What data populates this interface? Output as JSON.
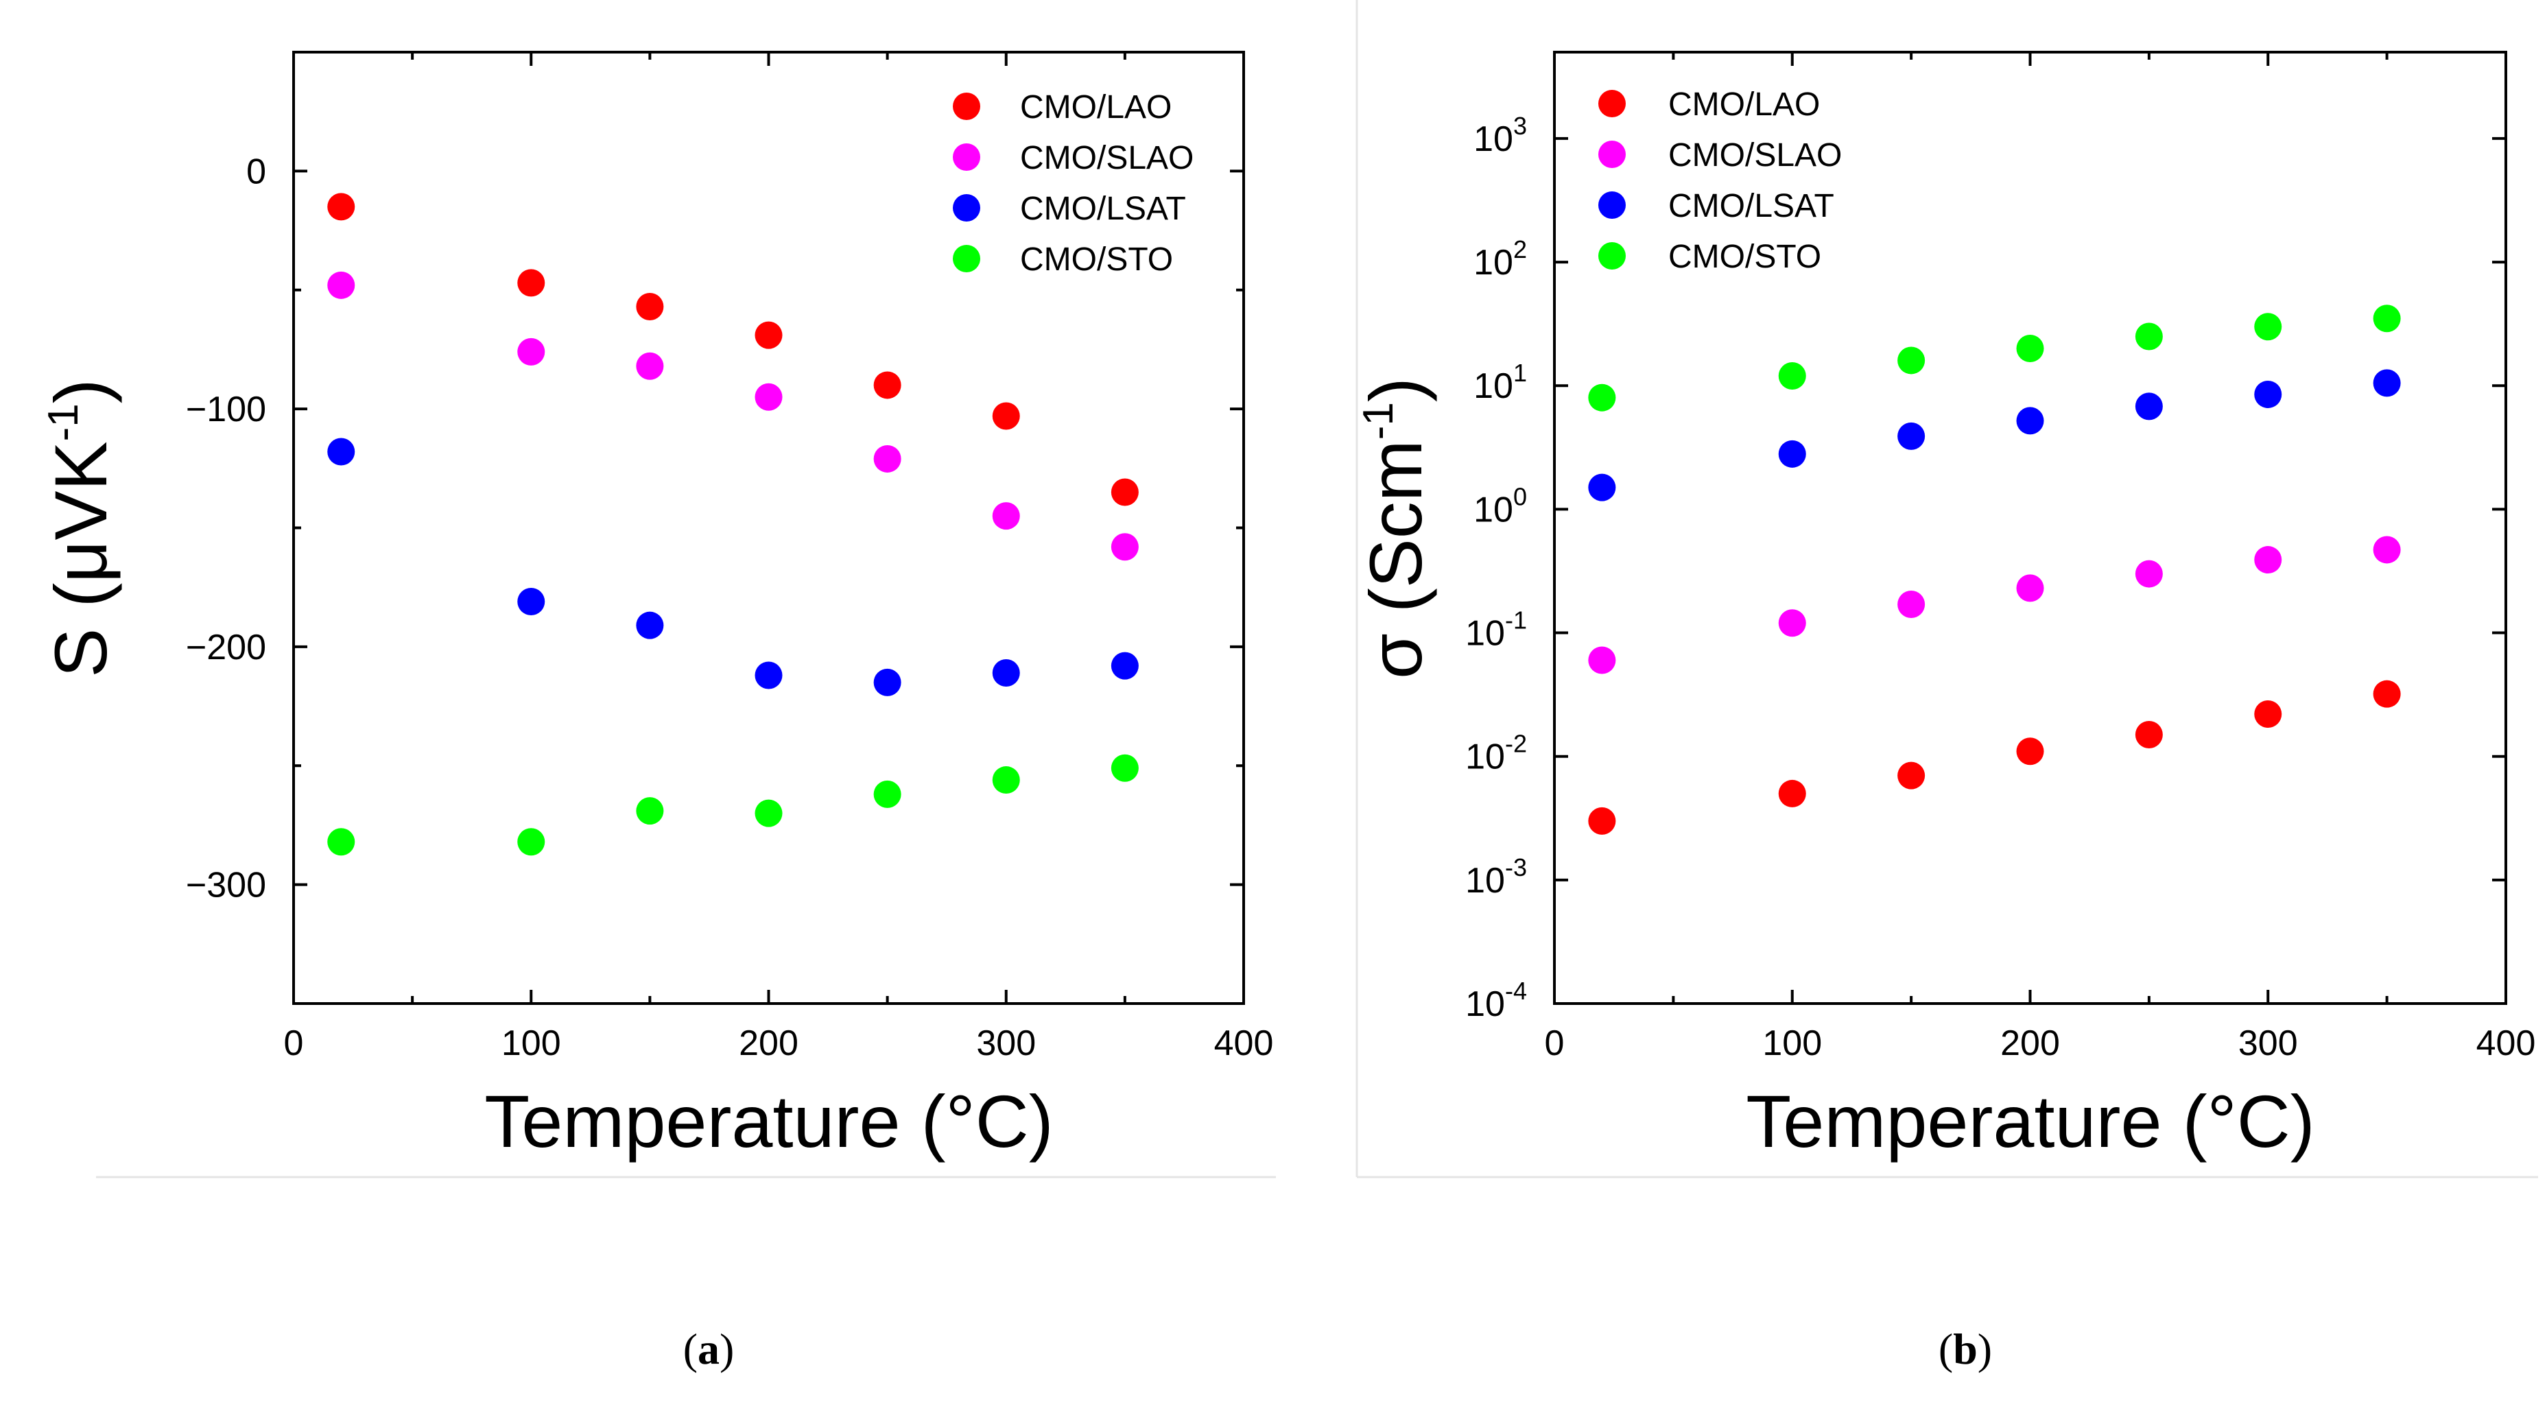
{
  "chart_data": [
    {
      "id": "a",
      "type": "scatter",
      "panel_label": "a",
      "xlabel": "Temperature (°C)",
      "ylabel_parts": [
        "S (μVK",
        "-1",
        ")"
      ],
      "xlim": [
        0,
        400
      ],
      "ylim": [
        -350,
        50
      ],
      "yscale": "linear",
      "xticks": [
        0,
        100,
        200,
        300,
        400
      ],
      "yticks": [
        0,
        -100,
        -200,
        -300
      ],
      "ytick_labels": [
        "0",
        "−100",
        "−200",
        "−300"
      ],
      "legend_position": "top-right",
      "x": [
        20,
        100,
        150,
        200,
        250,
        300,
        350
      ],
      "series": [
        {
          "name": "CMO/LAO",
          "color": "#ff0000",
          "values": [
            -15,
            -47,
            -57,
            -69,
            -90,
            -103,
            -135
          ]
        },
        {
          "name": "CMO/SLAO",
          "color": "#ff00ff",
          "values": [
            -48,
            -76,
            -82,
            -95,
            -121,
            -145,
            -158
          ]
        },
        {
          "name": "CMO/LSAT",
          "color": "#0000ff",
          "values": [
            -118,
            -181,
            -191,
            -212,
            -215,
            -211,
            -208
          ]
        },
        {
          "name": "CMO/STO",
          "color": "#00ff00",
          "values": [
            -282,
            -282,
            -269,
            -270,
            -262,
            -256,
            -251
          ]
        }
      ]
    },
    {
      "id": "b",
      "type": "scatter",
      "panel_label": "b",
      "xlabel": "Temperature (°C)",
      "ylabel_parts": [
        "σ (Scm",
        "-1",
        ")"
      ],
      "xlim": [
        0,
        400
      ],
      "ylim": [
        0.0001,
        5000
      ],
      "yscale": "log",
      "xticks": [
        0,
        100,
        200,
        300,
        400
      ],
      "yticks": [
        -4,
        -3,
        -2,
        -1,
        0,
        1,
        2,
        3
      ],
      "ytick_base": "10",
      "legend_position": "top-left",
      "x": [
        20,
        100,
        150,
        200,
        250,
        300,
        350
      ],
      "series": [
        {
          "name": "CMO/LAO",
          "color": "#ff0000",
          "values": [
            0.003,
            0.005,
            0.007,
            0.011,
            0.015,
            0.022,
            0.032
          ]
        },
        {
          "name": "CMO/SLAO",
          "color": "#ff00ff",
          "values": [
            0.06,
            0.12,
            0.17,
            0.23,
            0.3,
            0.39,
            0.47
          ]
        },
        {
          "name": "CMO/LSAT",
          "color": "#0000ff",
          "values": [
            1.5,
            2.8,
            3.9,
            5.2,
            6.8,
            8.5,
            10.5
          ]
        },
        {
          "name": "CMO/STO",
          "color": "#00ff00",
          "values": [
            8,
            12,
            16,
            20,
            25,
            30,
            35
          ]
        }
      ]
    }
  ]
}
